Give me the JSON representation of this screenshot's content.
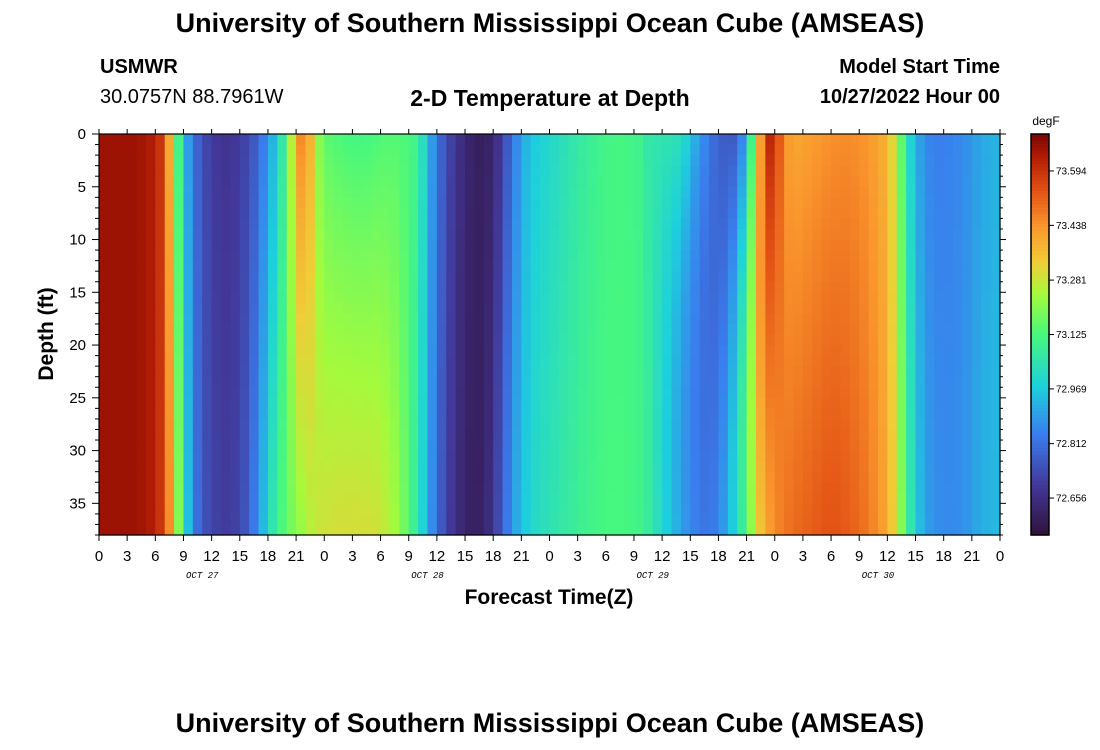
{
  "header": {
    "title": "University of Southern Mississippi Ocean Cube (AMSEAS)",
    "station": "USMWR",
    "coords": "30.0757N  88.7961W",
    "plot_title": "2-D Temperature at Depth",
    "model_label": "Model Start Time",
    "model_time": "10/27/2022 Hour 00"
  },
  "footer": {
    "title": "University of Southern Mississippi Ocean Cube (AMSEAS)"
  },
  "chart_data": {
    "type": "heatmap",
    "title": "2-D Temperature at Depth",
    "xlabel": "Forecast Time(Z)",
    "ylabel": "Depth (ft)",
    "x_hours": [
      0,
      96
    ],
    "x_tick_step_hours": 3,
    "x_tick_labels": [
      "0",
      "3",
      "6",
      "9",
      "12",
      "15",
      "18",
      "21",
      "0",
      "3",
      "6",
      "9",
      "12",
      "15",
      "18",
      "21",
      "0",
      "3",
      "6",
      "9",
      "12",
      "15",
      "18",
      "21",
      "0",
      "3",
      "6",
      "9",
      "12",
      "15",
      "18",
      "21",
      "0"
    ],
    "date_labels": [
      {
        "label": "OCT 27",
        "hour": 11
      },
      {
        "label": "OCT 28",
        "hour": 35
      },
      {
        "label": "OCT 29",
        "hour": 59
      },
      {
        "label": "OCT 30",
        "hour": 83
      }
    ],
    "y_range_ft": [
      0,
      38
    ],
    "y_ticks": [
      0,
      5,
      10,
      15,
      20,
      25,
      30,
      35
    ],
    "colorbar": {
      "unit": "degF",
      "range": [
        72.55,
        73.7
      ],
      "tick_values": [
        72.656,
        72.812,
        72.969,
        73.125,
        73.281,
        73.438,
        73.594
      ],
      "tick_labels": [
        "72.656",
        "72.812",
        "72.969",
        "73.125",
        "73.281",
        "73.438",
        "73.594"
      ]
    },
    "surface_profile": {
      "hours": [
        0,
        2,
        4,
        6,
        7,
        8,
        9,
        10,
        11,
        12,
        13,
        14,
        15,
        16,
        17,
        18,
        19,
        20,
        21,
        22,
        23,
        24,
        26,
        28,
        30,
        32,
        34,
        35,
        36,
        37,
        38,
        39,
        40,
        41,
        42,
        43,
        44,
        45,
        46,
        48,
        50,
        52,
        54,
        56,
        58,
        60,
        61,
        62,
        63,
        64,
        65,
        66,
        67,
        68,
        69,
        70,
        71,
        72,
        73,
        74,
        76,
        78,
        80,
        82,
        84,
        85,
        86,
        87,
        88,
        89,
        90,
        91,
        92,
        93,
        94,
        96
      ],
      "temps": [
        73.66,
        73.66,
        73.66,
        73.63,
        73.55,
        73.25,
        72.95,
        72.82,
        72.74,
        72.7,
        72.68,
        72.68,
        72.7,
        72.73,
        72.79,
        72.87,
        72.98,
        73.13,
        73.4,
        73.52,
        73.25,
        73.15,
        73.12,
        73.11,
        73.13,
        73.14,
        73.1,
        72.95,
        72.82,
        72.74,
        72.68,
        72.64,
        72.61,
        72.6,
        72.63,
        72.71,
        72.81,
        72.9,
        72.96,
        73.0,
        73.04,
        73.08,
        73.11,
        73.12,
        73.1,
        72.97,
        72.9,
        72.85,
        72.8,
        72.77,
        72.75,
        72.77,
        72.86,
        73.05,
        73.25,
        73.5,
        73.62,
        73.55,
        73.43,
        73.4,
        73.42,
        73.44,
        73.45,
        73.43,
        73.38,
        73.25,
        73.05,
        72.92,
        72.86,
        72.84,
        72.84,
        72.85,
        72.86,
        72.88,
        72.91,
        72.93
      ]
    },
    "bottom_profile": {
      "hours": [
        0,
        2,
        4,
        6,
        7,
        8,
        9,
        10,
        11,
        12,
        13,
        14,
        15,
        16,
        17,
        18,
        19,
        20,
        21,
        22,
        23,
        24,
        26,
        28,
        30,
        32,
        34,
        35,
        36,
        37,
        38,
        39,
        40,
        41,
        42,
        43,
        44,
        45,
        46,
        48,
        50,
        52,
        54,
        56,
        58,
        60,
        61,
        62,
        63,
        64,
        65,
        66,
        67,
        68,
        69,
        70,
        71,
        72,
        73,
        74,
        76,
        78,
        80,
        82,
        84,
        85,
        86,
        87,
        88,
        89,
        90,
        91,
        92,
        93,
        94,
        96
      ],
      "temps": [
        73.66,
        73.66,
        73.66,
        73.63,
        73.55,
        73.35,
        73.05,
        72.85,
        72.76,
        72.72,
        72.7,
        72.7,
        72.72,
        72.78,
        72.88,
        73.0,
        73.1,
        73.16,
        73.2,
        73.24,
        73.28,
        73.29,
        73.3,
        73.3,
        73.29,
        73.22,
        73.05,
        72.92,
        72.8,
        72.72,
        72.66,
        72.62,
        72.6,
        72.62,
        72.68,
        72.78,
        72.88,
        72.95,
        73.0,
        73.04,
        73.07,
        73.1,
        73.12,
        73.12,
        73.1,
        73.0,
        72.95,
        72.9,
        72.86,
        72.83,
        72.82,
        72.85,
        72.92,
        73.02,
        73.12,
        73.3,
        73.4,
        73.45,
        73.48,
        73.5,
        73.52,
        73.54,
        73.52,
        73.48,
        73.4,
        73.28,
        73.12,
        72.98,
        72.9,
        72.87,
        72.86,
        72.86,
        72.87,
        72.89,
        72.92,
        72.94
      ]
    },
    "surface_shift_hours": [
      {
        "hour": 54,
        "shift": 0
      },
      {
        "hour": 58,
        "shift": 0.6
      },
      {
        "hour": 62,
        "shift": -3.0
      },
      {
        "hour": 66,
        "shift": -2.5
      },
      {
        "hour": 69,
        "shift": -1.5
      },
      {
        "hour": 71,
        "shift": -0.6
      },
      {
        "hour": 74,
        "shift": 0
      }
    ]
  }
}
